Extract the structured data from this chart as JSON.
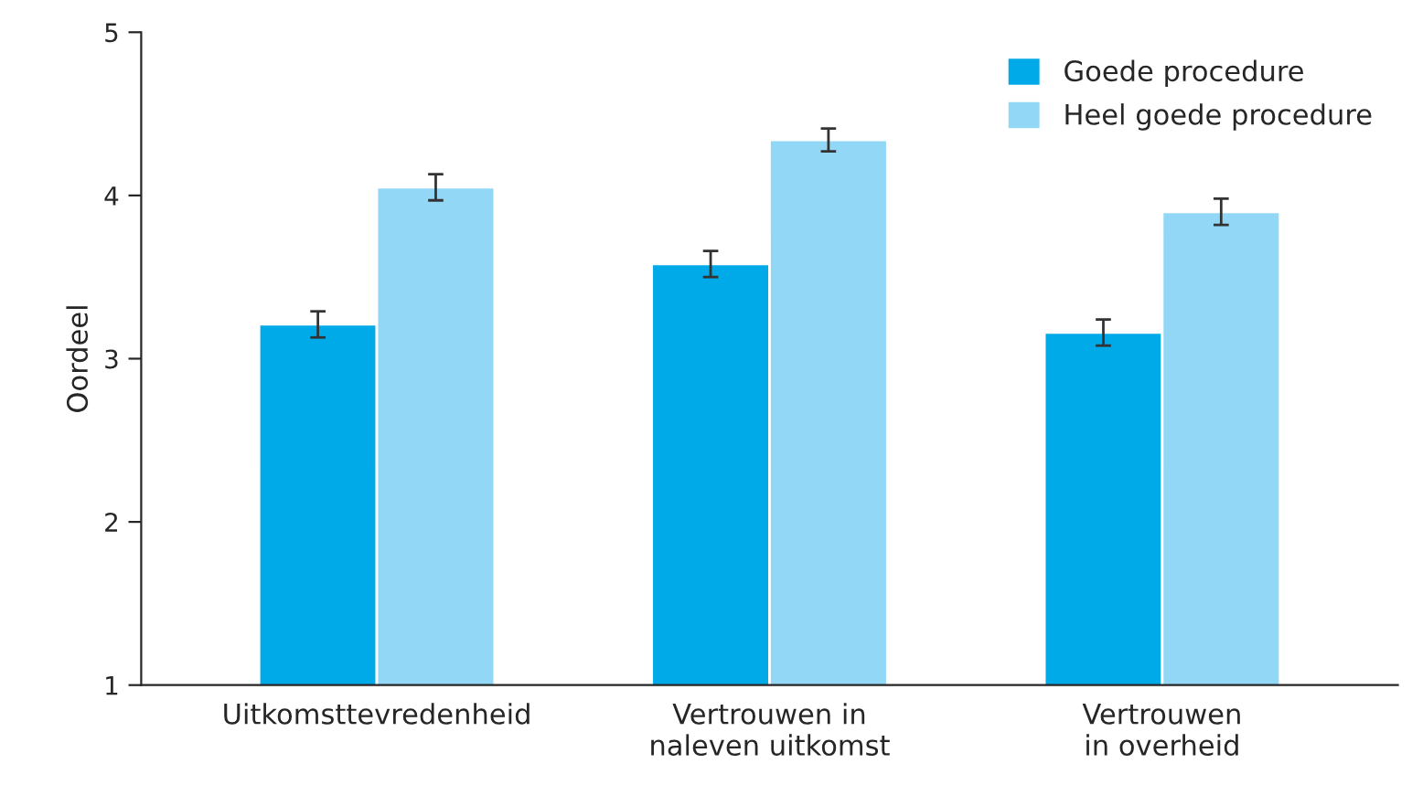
{
  "chart_data": {
    "type": "bar",
    "ylabel": "Oordeel",
    "categories": [
      "Uitkomsttevredenheid",
      "Vertrouwen in\nnaleven uitkomst",
      "Vertrouwen\nin overheid"
    ],
    "series": [
      {
        "name": "Goede procedure",
        "color": "#00a9e8",
        "values": [
          3.21,
          3.58,
          3.16
        ],
        "errors": [
          0.08,
          0.08,
          0.08
        ]
      },
      {
        "name": "Heel goede procedure",
        "color": "#92d8f6",
        "values": [
          4.05,
          4.34,
          3.9
        ],
        "errors": [
          0.08,
          0.07,
          0.08
        ]
      }
    ],
    "ylim": [
      1,
      5
    ],
    "yticks": [
      1,
      2,
      3,
      4,
      5
    ],
    "grid": false,
    "legend": "top right"
  }
}
